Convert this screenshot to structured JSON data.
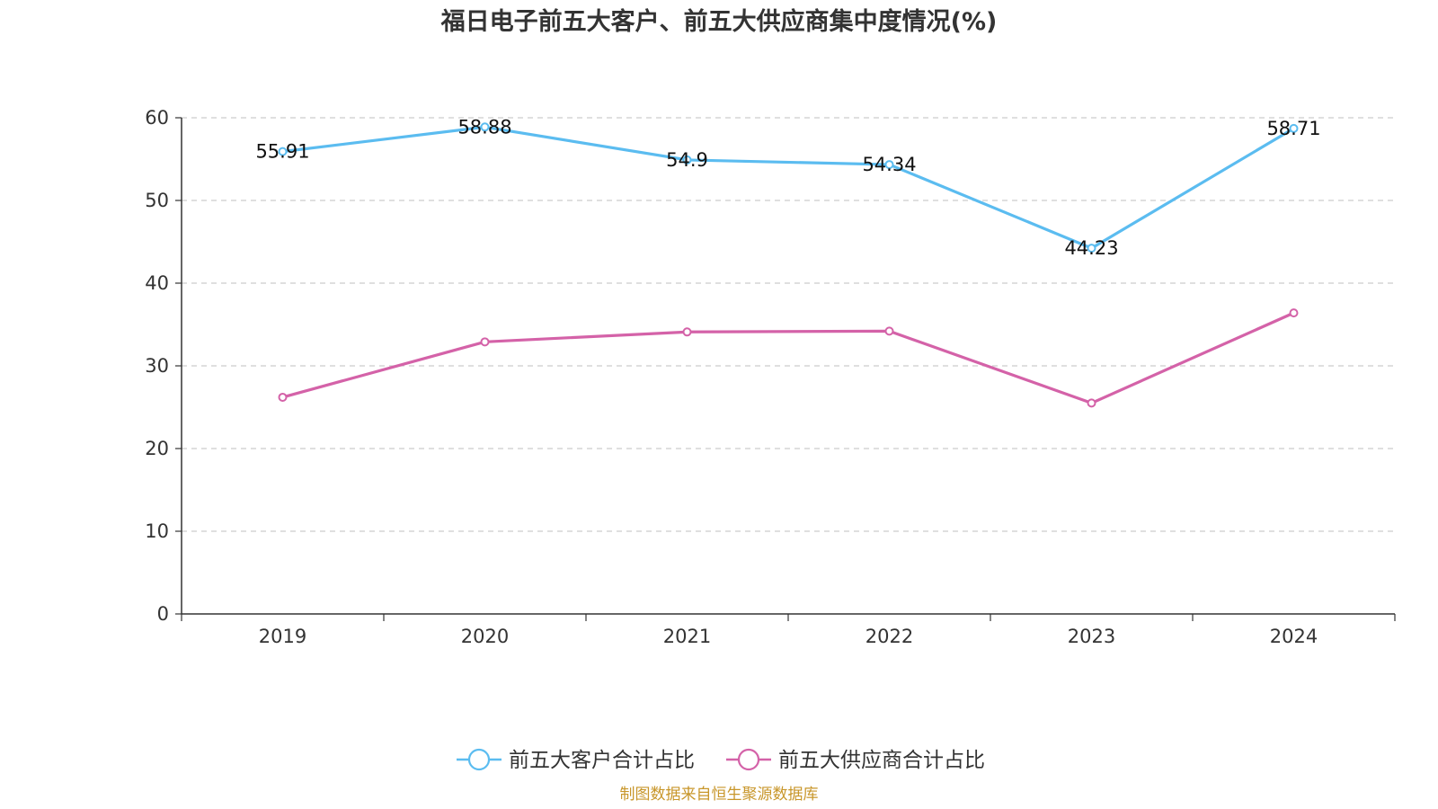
{
  "chart_data": {
    "type": "line",
    "title": "福日电子前五大客户、前五大供应商集中度情况(%)",
    "categories": [
      "2019",
      "2020",
      "2021",
      "2022",
      "2023",
      "2024"
    ],
    "ylim": [
      0,
      60
    ],
    "yticks": [
      "0",
      "10",
      "20",
      "30",
      "40",
      "50",
      "60"
    ],
    "grid": true,
    "legend_position": "bottom",
    "series": [
      {
        "name": "前五大客户合计占比",
        "color": "#5bbcf0",
        "values": [
          55.91,
          58.88,
          54.9,
          54.34,
          44.23,
          58.71
        ],
        "labels": [
          "55.91",
          "58.88",
          "54.9",
          "54.34",
          "44.23",
          "58.71"
        ]
      },
      {
        "name": "前五大供应商合计占比",
        "color": "#d462a8",
        "values": [
          26.2,
          32.9,
          34.1,
          34.2,
          25.5,
          36.4
        ]
      }
    ]
  },
  "source": {
    "text": "制图数据来自恒生聚源数据库",
    "color": "#c8962a"
  }
}
